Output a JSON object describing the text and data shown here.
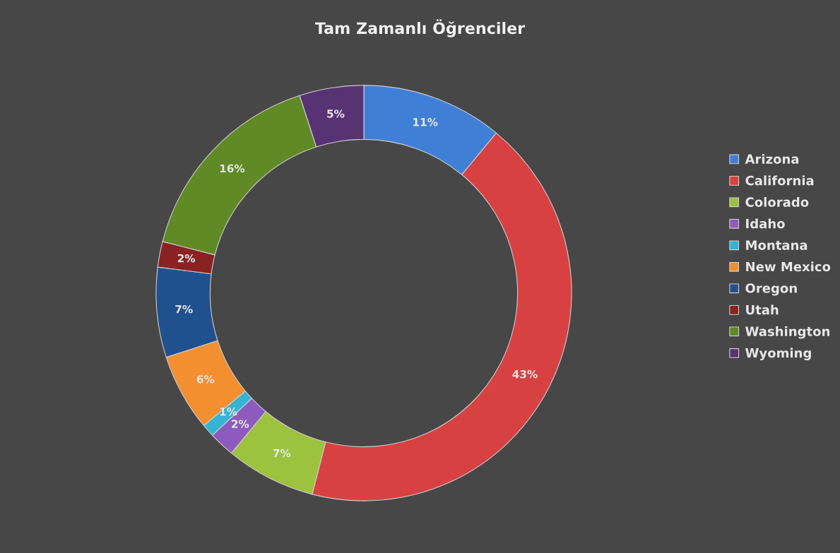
{
  "chart_data": {
    "type": "donut",
    "title": "Tam Zamanlı Öğrenciler",
    "categories": [
      "Arizona",
      "California",
      "Colorado",
      "Idaho",
      "Montana",
      "New Mexico",
      "Oregon",
      "Utah",
      "Washington",
      "Wyoming"
    ],
    "values": [
      11,
      43,
      7,
      2,
      1,
      6,
      7,
      2,
      16,
      5
    ],
    "value_labels": [
      "11%",
      "43%",
      "7%",
      "2%",
      "1%",
      "6%",
      "7%",
      "2%",
      "16%",
      "5%"
    ],
    "colors": [
      "#3f80d6",
      "#d84141",
      "#9cc23e",
      "#8d5bbd",
      "#35b4d3",
      "#f28f30",
      "#21508e",
      "#8a2222",
      "#5f8a25",
      "#583374"
    ],
    "legend": "right"
  }
}
